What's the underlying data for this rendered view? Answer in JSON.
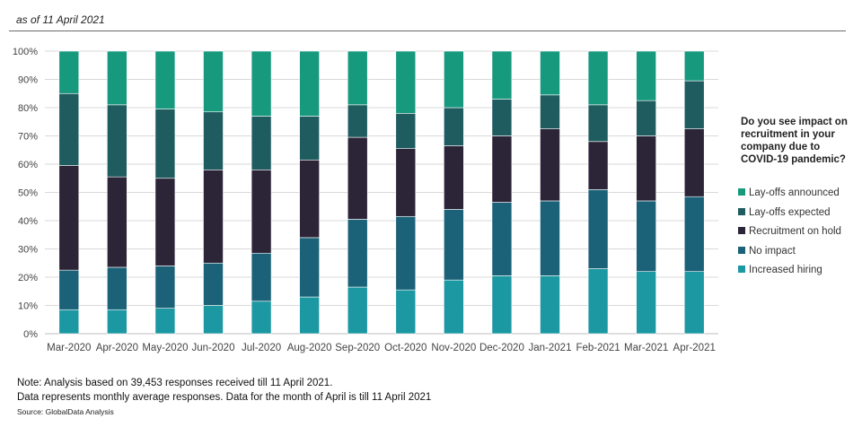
{
  "as_of": "as of 11 April 2021",
  "chart_data": {
    "type": "bar",
    "stacked": true,
    "categories": [
      "Mar-2020",
      "Apr-2020",
      "May-2020",
      "Jun-2020",
      "Jul-2020",
      "Aug-2020",
      "Sep-2020",
      "Oct-2020",
      "Nov-2020",
      "Dec-2020",
      "Jan-2021",
      "Feb-2021",
      "Mar-2021",
      "Apr-2021"
    ],
    "y_ticks": [
      "0%",
      "10%",
      "20%",
      "30%",
      "40%",
      "50%",
      "60%",
      "70%",
      "80%",
      "90%",
      "100%"
    ],
    "ylim": [
      0,
      100
    ],
    "legend_title": "Do you see impact on recruitment in your company due to COVID-19 pandemic?",
    "legend_position": "right",
    "series": [
      {
        "name": "Increased hiring",
        "color": "#1c98a3",
        "values": [
          8.5,
          8.5,
          9,
          10,
          11.5,
          13,
          16.5,
          15.5,
          19,
          20.5,
          20.5,
          23,
          22,
          22
        ]
      },
      {
        "name": "No impact",
        "color": "#1b6178",
        "values": [
          14,
          15,
          15,
          15,
          17,
          21,
          24,
          26,
          25,
          26,
          26.5,
          28,
          25,
          26.5
        ]
      },
      {
        "name": "Recruitment on hold",
        "color": "#2c2537",
        "values": [
          37,
          32,
          31,
          33,
          29.5,
          27.5,
          29,
          24,
          22.5,
          23.5,
          25.5,
          17,
          23,
          24
        ]
      },
      {
        "name": "Lay-offs expected",
        "color": "#1f5c60",
        "values": [
          25.5,
          25.5,
          24.5,
          20.5,
          19,
          15.5,
          11.5,
          12.5,
          13.5,
          13,
          12,
          13,
          12.5,
          17
        ]
      },
      {
        "name": "Lay-offs announced",
        "color": "#17997d",
        "values": [
          15,
          19,
          20.5,
          21.5,
          23,
          23,
          19,
          22,
          20,
          17,
          15.5,
          19,
          17.5,
          10.5
        ]
      }
    ]
  },
  "notes": {
    "line1": "Note: Analysis based on 39,453 responses received till 11 April 2021.",
    "line2": "Data represents monthly average responses. Data for the month of April is till 11 April 2021",
    "source": "Source: GlobalData Analysis"
  }
}
